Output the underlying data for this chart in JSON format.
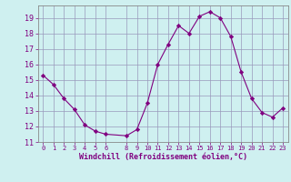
{
  "x": [
    0,
    1,
    2,
    3,
    4,
    5,
    6,
    8,
    9,
    10,
    11,
    12,
    13,
    14,
    15,
    16,
    17,
    18,
    19,
    20,
    21,
    22,
    23
  ],
  "y": [
    15.3,
    14.7,
    13.8,
    13.1,
    12.1,
    11.7,
    11.5,
    11.4,
    11.8,
    13.5,
    16.0,
    17.3,
    18.5,
    18.0,
    19.1,
    19.4,
    19.0,
    17.8,
    15.5,
    13.8,
    12.9,
    12.6,
    13.2
  ],
  "line_color": "#800080",
  "marker": "D",
  "marker_size": 2.2,
  "bg_color": "#cff0f0",
  "grid_color": "#9999bb",
  "xlabel": "Windchill (Refroidissement éolien,°C)",
  "xlim": [
    -0.5,
    23.5
  ],
  "ylim": [
    11,
    19.8
  ],
  "yticks": [
    11,
    12,
    13,
    14,
    15,
    16,
    17,
    18,
    19
  ],
  "xticks": [
    0,
    1,
    2,
    3,
    4,
    5,
    6,
    8,
    9,
    10,
    11,
    12,
    13,
    14,
    15,
    16,
    17,
    18,
    19,
    20,
    21,
    22,
    23
  ],
  "tick_color": "#800080",
  "label_color": "#800080",
  "spine_color": "#888888",
  "tick_fontsize": 5.0,
  "ylabel_fontsize": 6.0,
  "xlabel_fontsize": 6.0
}
